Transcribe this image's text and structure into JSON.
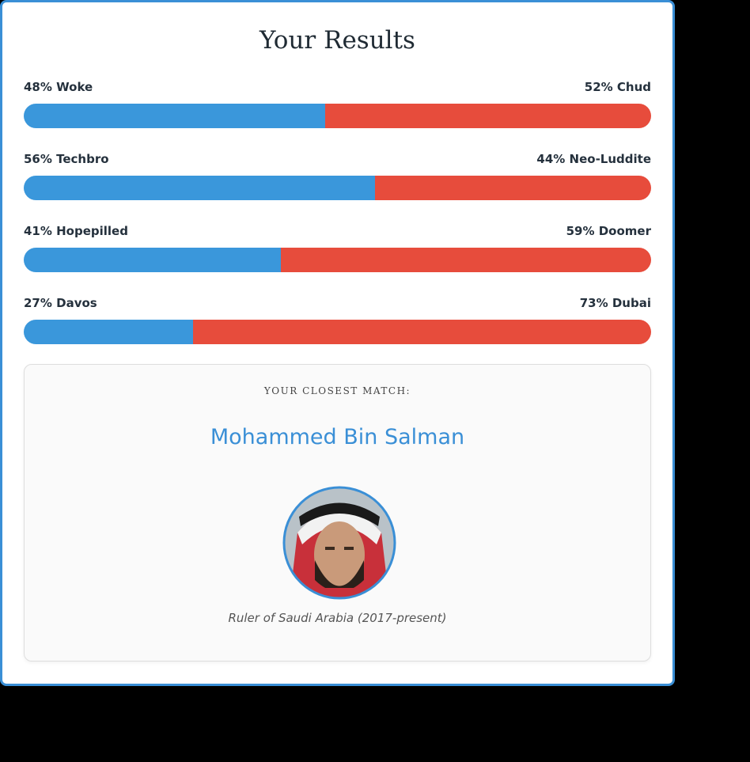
{
  "title": "Your Results",
  "results": [
    {
      "left_label": "48% Woke",
      "left_value": 48,
      "right_label": "52% Chud",
      "right_value": 52
    },
    {
      "left_label": "56% Techbro",
      "left_value": 56,
      "right_label": "44% Neo-Luddite",
      "right_value": 44
    },
    {
      "left_label": "41% Hopepilled",
      "left_value": 41,
      "right_label": "59% Doomer",
      "right_value": 59
    },
    {
      "left_label": "27% Davos",
      "left_value": 27,
      "right_label": "73% Dubai",
      "right_value": 73
    }
  ],
  "match": {
    "label": "YOUR CLOSEST MATCH:",
    "name": "Mohammed Bin Salman",
    "caption": "Ruler of Saudi Arabia (2017-present)"
  }
}
